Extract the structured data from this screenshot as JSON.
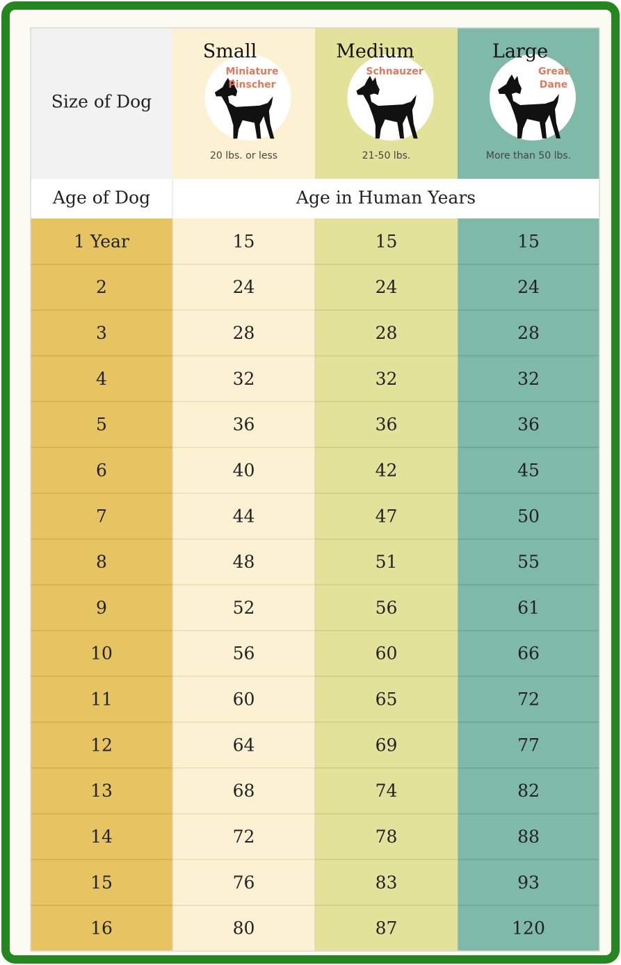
{
  "header": {
    "size_label": "Size of Dog",
    "columns": [
      {
        "title": "Small",
        "breed": [
          "Miniature",
          "Pinscher"
        ],
        "weight": "20 lbs. or less"
      },
      {
        "title": "Medium",
        "breed": [
          "Schnauzer"
        ],
        "weight": "21-50 lbs."
      },
      {
        "title": "Large",
        "breed": [
          "Great",
          "Dane"
        ],
        "weight": "More than 50 lbs."
      }
    ],
    "age_label": "Age of Dog",
    "human_label": "Age in Human Years"
  },
  "table": {
    "rows": [
      [
        "1 Year",
        15,
        15,
        15
      ],
      [
        "2",
        24,
        24,
        24
      ],
      [
        "3",
        28,
        28,
        28
      ],
      [
        "4",
        32,
        32,
        32
      ],
      [
        "5",
        36,
        36,
        36
      ],
      [
        "6",
        40,
        42,
        45
      ],
      [
        "7",
        44,
        47,
        50
      ],
      [
        "8",
        48,
        51,
        55
      ],
      [
        "9",
        52,
        56,
        61
      ],
      [
        "10",
        56,
        60,
        66
      ],
      [
        "11",
        60,
        65,
        72
      ],
      [
        "12",
        64,
        69,
        77
      ],
      [
        "13",
        68,
        74,
        82
      ],
      [
        "14",
        72,
        78,
        88
      ],
      [
        "15",
        76,
        83,
        93
      ],
      [
        "16",
        80,
        87,
        120
      ]
    ]
  }
}
